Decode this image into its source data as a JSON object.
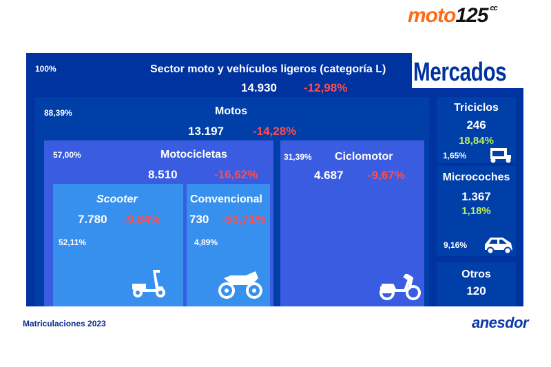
{
  "logo": {
    "text": "moto",
    "number": "125",
    "suffix": "cc"
  },
  "heading": "Mercados",
  "sector": {
    "pct": "100%",
    "title": "Sector moto y vehículos ligeros (categoría L)",
    "value": "14.930",
    "change": "-12,98%"
  },
  "motos": {
    "pct": "88,39%",
    "title": "Motos",
    "value": "13.197",
    "change": "-14,28%"
  },
  "motocicletas": {
    "pct": "57,00%",
    "title": "Motocicletas",
    "value": "8.510",
    "change": "-16,62%"
  },
  "scooter": {
    "pct": "52,11%",
    "title": "Scooter",
    "value": "7.780",
    "change": "-9,84%"
  },
  "convencional": {
    "pct": "4,89%",
    "title": "Convencional",
    "value": "730",
    "change": "-53,71%"
  },
  "ciclomotor": {
    "pct": "31,39%",
    "title": "Ciclomotor",
    "value": "4.687",
    "change": "-9,67%"
  },
  "triciclos": {
    "pct": "1,65%",
    "title": "Triciclos",
    "value": "246",
    "change": "18,84%"
  },
  "microcoches": {
    "pct": "9,16%",
    "title": "Microcoches",
    "value": "1.367",
    "change": "1,18%"
  },
  "otros": {
    "title": "Otros",
    "value": "120"
  },
  "footer": {
    "caption": "Matriculaciones 2023",
    "brand": "anesdor"
  },
  "colors": {
    "outer": "#0032a0",
    "motos": "#003ea8",
    "motocicletas": "#3a5ce0",
    "scooter": "#3890ee",
    "negative": "#ff4d4d",
    "positive": "#b8f060",
    "logo": "#ff6a13"
  }
}
